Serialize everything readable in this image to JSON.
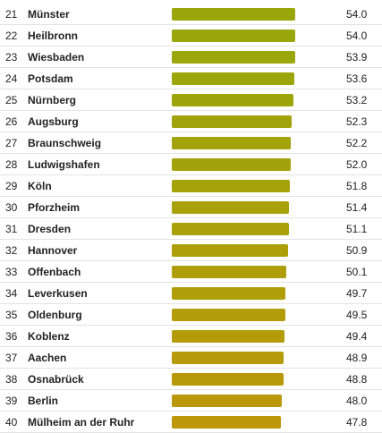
{
  "chart_data": {
    "type": "bar",
    "orientation": "horizontal",
    "xlim": [
      0,
      54.0
    ],
    "rows": [
      {
        "rank": "21",
        "city": "Münster",
        "value": 54.0,
        "color": "#9aa60a"
      },
      {
        "rank": "22",
        "city": "Heilbronn",
        "value": 54.0,
        "color": "#9aa60a"
      },
      {
        "rank": "23",
        "city": "Wiesbaden",
        "value": 53.9,
        "color": "#9ba60a"
      },
      {
        "rank": "24",
        "city": "Potsdam",
        "value": 53.6,
        "color": "#9ca50a"
      },
      {
        "rank": "25",
        "city": "Nürnberg",
        "value": 53.2,
        "color": "#9ea50a"
      },
      {
        "rank": "26",
        "city": "Augsburg",
        "value": 52.3,
        "color": "#a0a40a"
      },
      {
        "rank": "27",
        "city": "Braunschweig",
        "value": 52.2,
        "color": "#a2a30a"
      },
      {
        "rank": "28",
        "city": "Ludwigshafen",
        "value": 52.0,
        "color": "#a4a20a"
      },
      {
        "rank": "29",
        "city": "Köln",
        "value": 51.8,
        "color": "#a6a20a"
      },
      {
        "rank": "30",
        "city": "Pforzheim",
        "value": 51.4,
        "color": "#a8a10a"
      },
      {
        "rank": "31",
        "city": "Dresden",
        "value": 51.1,
        "color": "#aaa00a"
      },
      {
        "rank": "32",
        "city": "Hannover",
        "value": 50.9,
        "color": "#ac9f0a"
      },
      {
        "rank": "33",
        "city": "Offenbach",
        "value": 50.1,
        "color": "#ae9e0a"
      },
      {
        "rank": "34",
        "city": "Leverkusen",
        "value": 49.7,
        "color": "#b09d0a"
      },
      {
        "rank": "35",
        "city": "Oldenburg",
        "value": 49.5,
        "color": "#b29c0a"
      },
      {
        "rank": "36",
        "city": "Koblenz",
        "value": 49.4,
        "color": "#b49b0a"
      },
      {
        "rank": "37",
        "city": "Aachen",
        "value": 48.9,
        "color": "#b69a0a"
      },
      {
        "rank": "38",
        "city": "Osnabrück",
        "value": 48.8,
        "color": "#b8990a"
      },
      {
        "rank": "39",
        "city": "Berlin",
        "value": 48.0,
        "color": "#ba980a"
      },
      {
        "rank": "40",
        "city": "Mülheim an der Ruhr",
        "value": 47.8,
        "color": "#bc970a"
      }
    ]
  }
}
